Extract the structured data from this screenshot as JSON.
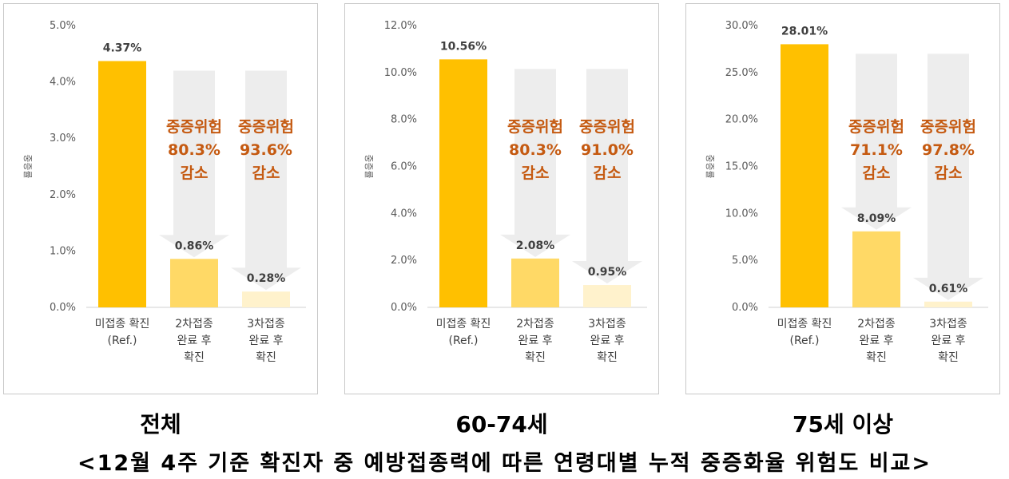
{
  "figure_caption": "<12월 4주 기준 확진자 중 예방접종력에 따른 연령대별 누적 중증화율 위험도 비교>",
  "colors": {
    "ref": "#FFC000",
    "dose2": "#FFD966",
    "dose3": "#FFF2CC",
    "arrow": "#EDEDED",
    "callout": "#C55A11",
    "axis": "#595959"
  },
  "chart_data": [
    {
      "type": "bar",
      "panel_title": "전체",
      "ylabel": "중증률",
      "ylim": [
        0,
        5
      ],
      "yticks": [
        "0.0%",
        "1.0%",
        "2.0%",
        "3.0%",
        "4.0%",
        "5.0%"
      ],
      "categories": [
        [
          "미접종 확진",
          "(Ref.)"
        ],
        [
          "2차접종",
          "완료 후",
          "확진"
        ],
        [
          "3차접종",
          "완료 후",
          "확진"
        ]
      ],
      "values": [
        4.37,
        0.86,
        0.28
      ],
      "value_labels": [
        "4.37%",
        "0.86%",
        "0.28%"
      ],
      "annotations": [
        [
          "중증위험",
          "80.3%",
          "감소"
        ],
        [
          "중증위험",
          "93.6%",
          "감소"
        ]
      ]
    },
    {
      "type": "bar",
      "panel_title": "60-74세",
      "ylabel": "중증률",
      "ylim": [
        0,
        12
      ],
      "yticks": [
        "0.0%",
        "2.0%",
        "4.0%",
        "6.0%",
        "8.0%",
        "10.0%",
        "12.0%"
      ],
      "categories": [
        [
          "미접종 확진",
          "(Ref.)"
        ],
        [
          "2차접종",
          "완료 후",
          "확진"
        ],
        [
          "3차접종",
          "완료 후",
          "확진"
        ]
      ],
      "values": [
        10.56,
        2.08,
        0.95
      ],
      "value_labels": [
        "10.56%",
        "2.08%",
        "0.95%"
      ],
      "annotations": [
        [
          "중증위험",
          "80.3%",
          "감소"
        ],
        [
          "중증위험",
          "91.0%",
          "감소"
        ]
      ]
    },
    {
      "type": "bar",
      "panel_title": "75세 이상",
      "ylabel": "중증률",
      "ylim": [
        0,
        30
      ],
      "yticks": [
        "0.0%",
        "5.0%",
        "10.0%",
        "15.0%",
        "20.0%",
        "25.0%",
        "30.0%"
      ],
      "categories": [
        [
          "미접종 확진",
          "(Ref.)"
        ],
        [
          "2차접종",
          "완료 후",
          "확진"
        ],
        [
          "3차접종",
          "완료 후",
          "확진"
        ]
      ],
      "values": [
        28.01,
        8.09,
        0.61
      ],
      "value_labels": [
        "28.01%",
        "8.09%",
        "0.61%"
      ],
      "annotations": [
        [
          "중증위험",
          "71.1%",
          "감소"
        ],
        [
          "중증위험",
          "97.8%",
          "감소"
        ]
      ]
    }
  ]
}
